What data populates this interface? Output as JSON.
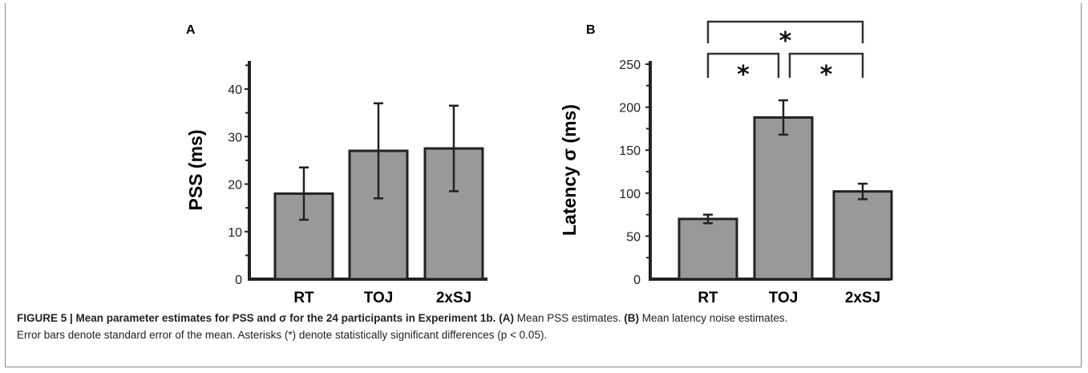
{
  "figure": {
    "caption": {
      "label": "FIGURE 5 | Mean parameter estimates for PSS and σ for the 24 participants in Experiment 1b.",
      "a_tag": "(A)",
      "a_text": " Mean PSS estimates. ",
      "b_tag": "(B)",
      "b_text": " Mean latency noise estimates.",
      "line2": "Error bars denote standard error of the mean. Asterisks (*) denote statistically significant differences (p < 0.05)."
    }
  },
  "chart_data": [
    {
      "panel": "A",
      "type": "bar",
      "categories": [
        "RT",
        "TOJ",
        "2xSJ"
      ],
      "values": [
        18,
        27,
        27.5
      ],
      "error_low": [
        12.5,
        17,
        18.5
      ],
      "error_high": [
        23.5,
        37,
        36.5
      ],
      "ylabel": "PSS (ms)",
      "ylim": [
        0,
        45
      ],
      "yticks": [
        0,
        10,
        20,
        30,
        40
      ],
      "bar_color": "#999999",
      "grid": false
    },
    {
      "panel": "B",
      "type": "bar",
      "categories": [
        "RT",
        "TOJ",
        "2xSJ"
      ],
      "values": [
        70,
        188,
        102
      ],
      "error_low": [
        65,
        168,
        93
      ],
      "error_high": [
        75,
        208,
        111
      ],
      "ylabel": "Latency σ (ms)",
      "ylim": [
        0,
        250
      ],
      "yticks": [
        0,
        50,
        100,
        150,
        200,
        250
      ],
      "bar_color": "#999999",
      "grid": false,
      "significance": [
        {
          "from": "RT",
          "to": "TOJ",
          "label": "*"
        },
        {
          "from": "TOJ",
          "to": "2xSJ",
          "label": "*"
        },
        {
          "from": "RT",
          "to": "2xSJ",
          "label": "*"
        }
      ]
    }
  ]
}
